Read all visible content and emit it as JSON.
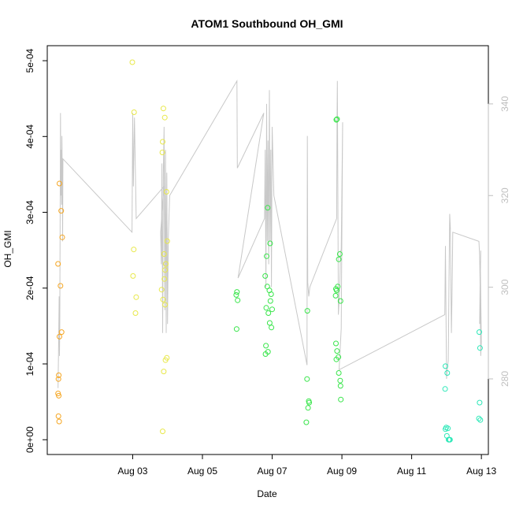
{
  "chart_data": {
    "type": "scatter",
    "title": "ATOM1 Southbound OH_GMI",
    "xlabel": "Date",
    "ylabel": "OH_GMI",
    "x_ticks": [
      {
        "value": 2.0,
        "label": "Aug 03"
      },
      {
        "value": 4.0,
        "label": "Aug 05"
      },
      {
        "value": 6.0,
        "label": "Aug 07"
      },
      {
        "value": 8.0,
        "label": "Aug 09"
      },
      {
        "value": 10.0,
        "label": "Aug 11"
      },
      {
        "value": 12.0,
        "label": "Aug 13"
      }
    ],
    "xlim": [
      -0.45,
      12.2
    ],
    "y_ticks": [
      {
        "value": 0.0,
        "label": "0e+00"
      },
      {
        "value": 0.0001,
        "label": "1e-04"
      },
      {
        "value": 0.0002,
        "label": "2e-04"
      },
      {
        "value": 0.0003,
        "label": "3e-04"
      },
      {
        "value": 0.0004,
        "label": "4e-04"
      },
      {
        "value": 0.0005,
        "label": "5e-04"
      }
    ],
    "ylim": [
      -1.95e-05,
      0.0005198
    ],
    "y2_ticks": [
      {
        "value": 280,
        "label": "280"
      },
      {
        "value": 300,
        "label": "300"
      },
      {
        "value": 320,
        "label": "320"
      },
      {
        "value": 340,
        "label": "340"
      }
    ],
    "y2lim": [
      263.5,
      352.7
    ],
    "grid": false,
    "marker": "open-circle",
    "colors": {
      "orange": "#f5a623",
      "yellow": "#e8e84a",
      "green": "#38e54a",
      "teal": "#2de8b8",
      "line": "#c8c8c8",
      "axis": "#000000",
      "right_axis": "#bfbfbf"
    },
    "series": [
      {
        "color": "orange",
        "points": [
          [
            -0.1,
            0.000338
          ],
          [
            -0.05,
            0.000302
          ],
          [
            -0.02,
            0.000267
          ],
          [
            -0.14,
            0.000232
          ],
          [
            -0.07,
            0.000203
          ],
          [
            -0.04,
            0.000142
          ],
          [
            -0.1,
            0.000136
          ],
          [
            -0.12,
            8.5e-05
          ],
          [
            -0.13,
            8e-05
          ],
          [
            -0.14,
            6.1e-05
          ],
          [
            -0.12,
            5.8e-05
          ],
          [
            -0.13,
            3.1e-05
          ],
          [
            -0.11,
            2.4e-05
          ]
        ]
      },
      {
        "color": "yellow",
        "points": [
          [
            1.99,
            0.000498
          ],
          [
            2.04,
            0.000432
          ],
          [
            2.03,
            0.000251
          ],
          [
            2.01,
            0.000216
          ],
          [
            2.1,
            0.000188
          ],
          [
            2.08,
            0.000167
          ],
          [
            2.88,
            0.000437
          ],
          [
            2.92,
            0.000425
          ],
          [
            2.86,
            0.000393
          ],
          [
            2.85,
            0.000379
          ],
          [
            2.97,
            0.000327
          ],
          [
            2.99,
            0.000262
          ],
          [
            2.9,
            0.000245
          ],
          [
            2.95,
            0.000232
          ],
          [
            2.93,
            0.000224
          ],
          [
            2.91,
            0.000212
          ],
          [
            2.83,
            0.000198
          ],
          [
            2.87,
            0.000185
          ],
          [
            2.93,
            0.000178
          ],
          [
            2.98,
            0.000108
          ],
          [
            2.94,
            0.000105
          ],
          [
            2.89,
            9e-05
          ],
          [
            2.86,
            1.1e-05
          ]
        ]
      },
      {
        "color": "green",
        "points": [
          [
            4.99,
            0.000195
          ],
          [
            4.97,
            0.000191
          ],
          [
            5.01,
            0.000184
          ],
          [
            4.98,
            0.000146
          ],
          [
            5.87,
            0.000306
          ],
          [
            5.84,
            0.000242
          ],
          [
            5.94,
            0.000259
          ],
          [
            5.8,
            0.000216
          ],
          [
            5.86,
            0.000202
          ],
          [
            5.92,
            0.000197
          ],
          [
            5.97,
            0.000192
          ],
          [
            5.83,
            0.000174
          ],
          [
            5.89,
            0.000167
          ],
          [
            5.95,
            0.000183
          ],
          [
            6.0,
            0.000172
          ],
          [
            5.93,
            0.000154
          ],
          [
            5.98,
            0.000148
          ],
          [
            5.82,
            0.000124
          ],
          [
            5.88,
            0.000116
          ],
          [
            5.81,
            0.000113
          ],
          [
            7.01,
            0.00017
          ],
          [
            7.0,
            8e-05
          ],
          [
            7.05,
            5.1e-05
          ],
          [
            7.06,
            4.9e-05
          ],
          [
            7.03,
            4.2e-05
          ],
          [
            6.98,
            2.3e-05
          ],
          [
            7.84,
            0.000422
          ],
          [
            7.86,
            0.000423
          ],
          [
            7.94,
            0.000245
          ],
          [
            7.91,
            0.000238
          ],
          [
            7.88,
            0.000202
          ],
          [
            7.83,
            0.000199
          ],
          [
            7.85,
            0.000197
          ],
          [
            7.82,
            0.00019
          ],
          [
            7.96,
            0.000183
          ],
          [
            7.83,
            0.000127
          ],
          [
            7.86,
            0.000117
          ],
          [
            7.9,
            0.000109
          ],
          [
            7.84,
            0.000106
          ],
          [
            7.91,
            8.8e-05
          ],
          [
            7.95,
            7.8e-05
          ],
          [
            7.96,
            7.1e-05
          ],
          [
            7.97,
            5.3e-05
          ]
        ]
      },
      {
        "color": "teal",
        "points": [
          [
            10.97,
            9.7e-05
          ],
          [
            11.02,
            8.8e-05
          ],
          [
            10.96,
            6.7e-05
          ],
          [
            10.99,
            1.6e-05
          ],
          [
            11.04,
            1.5e-05
          ],
          [
            10.97,
            1.4e-05
          ],
          [
            11.01,
            5e-06
          ],
          [
            11.06,
            0.0
          ],
          [
            11.08,
            0.0
          ],
          [
            11.1,
            0.0
          ],
          [
            11.94,
            0.000142
          ],
          [
            11.96,
            0.000121
          ],
          [
            11.95,
            4.9e-05
          ],
          [
            11.93,
            2.8e-05
          ],
          [
            11.97,
            2.6e-05
          ]
        ]
      }
    ],
    "line_series": {
      "axis": "y2",
      "points": [
        [
          -0.14,
          278
        ],
        [
          -0.12,
          290
        ],
        [
          -0.11,
          298
        ],
        [
          -0.1,
          285
        ],
        [
          -0.09,
          292
        ],
        [
          -0.07,
          338
        ],
        [
          -0.06,
          320
        ],
        [
          -0.05,
          330
        ],
        [
          -0.04,
          318
        ],
        [
          -0.03,
          333
        ],
        [
          -0.02,
          325
        ],
        [
          -0.01,
          310
        ],
        [
          0.0,
          328
        ],
        [
          1.98,
          312
        ],
        [
          2.0,
          338
        ],
        [
          2.02,
          322
        ],
        [
          2.05,
          337
        ],
        [
          2.1,
          315
        ],
        [
          2.9,
          322
        ],
        [
          2.8,
          312
        ],
        [
          2.82,
          305
        ],
        [
          2.84,
          327
        ],
        [
          2.86,
          290
        ],
        [
          2.88,
          325
        ],
        [
          2.9,
          335
        ],
        [
          2.92,
          295
        ],
        [
          2.94,
          330
        ],
        [
          2.96,
          290
        ],
        [
          2.98,
          325
        ],
        [
          3.0,
          292
        ],
        [
          3.02,
          310
        ],
        [
          3.06,
          320
        ],
        [
          4.99,
          345
        ],
        [
          5.0,
          326
        ],
        [
          5.76,
          338
        ],
        [
          5.02,
          302
        ],
        [
          5.78,
          315
        ],
        [
          5.8,
          330
        ],
        [
          5.82,
          300
        ],
        [
          5.84,
          340
        ],
        [
          5.86,
          310
        ],
        [
          5.88,
          332
        ],
        [
          5.9,
          305
        ],
        [
          5.92,
          343
        ],
        [
          5.94,
          310
        ],
        [
          5.96,
          330
        ],
        [
          5.98,
          300
        ],
        [
          6.0,
          335
        ],
        [
          6.05,
          320
        ],
        [
          7.0,
          283
        ],
        [
          7.0,
          290
        ],
        [
          7.01,
          333
        ],
        [
          7.02,
          301
        ],
        [
          7.05,
          298
        ],
        [
          7.08,
          300
        ],
        [
          7.85,
          315
        ],
        [
          7.86,
          337
        ],
        [
          7.87,
          345
        ],
        [
          7.9,
          294
        ],
        [
          7.94,
          300
        ],
        [
          7.96,
          308
        ],
        [
          7.98,
          308
        ],
        [
          8.02,
          336
        ],
        [
          7.98,
          291
        ],
        [
          7.92,
          282
        ],
        [
          10.95,
          294
        ],
        [
          10.97,
          309
        ],
        [
          11.0,
          280
        ],
        [
          11.02,
          282
        ],
        [
          11.05,
          284
        ],
        [
          11.07,
          301
        ],
        [
          11.09,
          316
        ],
        [
          11.11,
          313
        ],
        [
          11.14,
          290
        ],
        [
          11.16,
          300
        ],
        [
          11.18,
          312
        ],
        [
          11.93,
          310
        ],
        [
          11.95,
          307
        ],
        [
          11.96,
          302
        ],
        [
          11.98,
          285
        ],
        [
          12.0,
          288
        ],
        [
          11.97,
          305
        ],
        [
          11.95,
          292
        ],
        [
          11.98,
          308
        ]
      ]
    }
  }
}
